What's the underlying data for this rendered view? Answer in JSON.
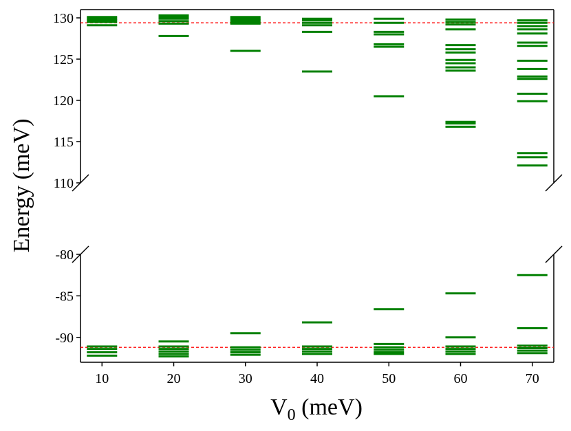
{
  "chart_data": {
    "type": "scatter",
    "xlabel": "V",
    "xlabel_sub": "0",
    "xlabel_unit": " (meV)",
    "ylabel": "Energy (meV)",
    "x_ticks": [
      "10",
      "20",
      "30",
      "40",
      "50",
      "60",
      "70"
    ],
    "x_values": [
      10,
      20,
      30,
      40,
      50,
      60,
      70
    ],
    "xlim": [
      7,
      73
    ],
    "upper_panel": {
      "ylim": [
        110,
        131
      ],
      "y_ticks": [
        "110",
        "115",
        "120",
        "125",
        "130"
      ],
      "y_tick_values": [
        110,
        115,
        120,
        125,
        130
      ],
      "reference_line": 129.4,
      "levels": [
        [
          129.1,
          129.5,
          129.7,
          129.9,
          130.1
        ],
        [
          127.8,
          129.3,
          129.6,
          129.9,
          130.1,
          130.3
        ],
        [
          126.0,
          129.3,
          129.5,
          129.7,
          129.9,
          130.1
        ],
        [
          123.5,
          128.3,
          129.1,
          129.4,
          129.7,
          129.9
        ],
        [
          120.5,
          126.5,
          126.8,
          128.0,
          128.3,
          129.4,
          129.9
        ],
        [
          116.8,
          117.2,
          117.4,
          123.6,
          124.0,
          124.5,
          124.9,
          125.8,
          126.2,
          126.7,
          128.6,
          129.2,
          129.5,
          129.8
        ],
        [
          112.1,
          113.1,
          113.6,
          119.9,
          120.8,
          122.6,
          122.9,
          123.8,
          124.8,
          126.6,
          127.0,
          128.1,
          128.6,
          129.0,
          129.4,
          129.7
        ]
      ]
    },
    "lower_panel": {
      "ylim": [
        -93,
        -80
      ],
      "y_ticks": [
        "-80",
        "-85",
        "-90"
      ],
      "y_tick_values": [
        -80,
        -85,
        -90
      ],
      "reference_line": -91.2,
      "levels": [
        [
          -92.2,
          -91.8,
          -91.4,
          -91.1
        ],
        [
          -90.5,
          -91.1,
          -91.4,
          -91.7,
          -92.0,
          -92.3
        ],
        [
          -89.5,
          -91.2,
          -91.5,
          -91.8,
          -92.1
        ],
        [
          -88.2,
          -91.1,
          -91.4,
          -91.7,
          -92.0
        ],
        [
          -86.6,
          -90.8,
          -91.2,
          -91.5,
          -91.8,
          -92.0
        ],
        [
          -84.7,
          -90.0,
          -91.1,
          -91.4,
          -91.7,
          -92.0
        ],
        [
          -82.5,
          -88.9,
          -91.0,
          -91.3,
          -91.6,
          -91.9
        ]
      ]
    },
    "colors": {
      "levels": "#008000",
      "reference": "#ff0000",
      "axes": "#000000"
    },
    "grid": false
  }
}
